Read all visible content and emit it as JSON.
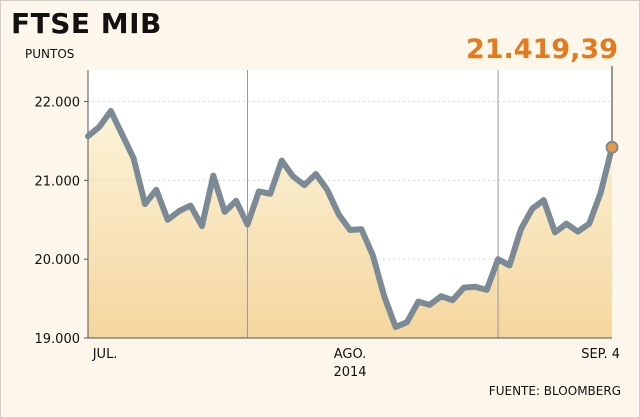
{
  "chart_data": {
    "type": "line",
    "title": "FTSE MIB",
    "ylabel": "PUNTOS",
    "source": "FUENTE: BLOOMBERG",
    "ylim": [
      19000,
      22400
    ],
    "yticks": [
      {
        "value": 19000,
        "label": "19.000"
      },
      {
        "value": 20000,
        "label": "20.000"
      },
      {
        "value": 21000,
        "label": "21.000"
      },
      {
        "value": 22000,
        "label": "22.000"
      }
    ],
    "xticks": [
      {
        "index": 1.5,
        "label": "JUL."
      },
      {
        "index": 23,
        "label": "AGO."
      },
      {
        "index": 45,
        "label": "SEP. 4"
      }
    ],
    "xlabel_year": "2014",
    "last_value_label": "21.419,39",
    "values": [
      21560,
      21680,
      21880,
      21580,
      21280,
      20700,
      20880,
      20500,
      20610,
      20680,
      20420,
      21060,
      20600,
      20740,
      20440,
      20860,
      20830,
      21250,
      21050,
      20940,
      21080,
      20880,
      20570,
      20370,
      20380,
      20050,
      19530,
      19140,
      19200,
      19460,
      19420,
      19530,
      19480,
      19640,
      19650,
      19610,
      20000,
      19920,
      20380,
      20640,
      20750,
      20340,
      20450,
      20350,
      20450,
      20840,
      21419.39
    ],
    "colors": {
      "line": "#7c8a95",
      "fill_top": "#fbf3d9",
      "fill_bottom": "#f5d79e",
      "marker": "#e89a43",
      "grid": "#9a9a9a",
      "accent": "#e47a1e"
    }
  }
}
